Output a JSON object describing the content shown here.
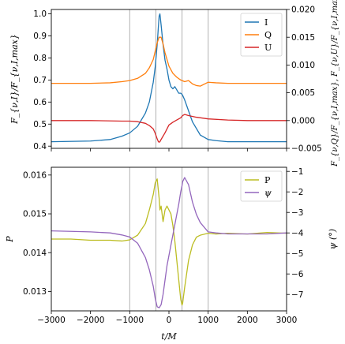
{
  "chart_data": [
    {
      "type": "line",
      "xlim": [
        -3000,
        3000
      ],
      "ylim": [
        0.39,
        1.02
      ],
      "ylim_right": [
        -0.005,
        0.02
      ],
      "ylabel": "F_{ν,I}/F_{ν,I,max}",
      "ylabel_right": "F_{ν,Q}/F_{ν,I,max}, F_{ν,U}/F_{ν,I,max}",
      "yticks": [
        0.4,
        0.5,
        0.6,
        0.7,
        0.8,
        0.9,
        1.0
      ],
      "yticks_right": [
        -0.005,
        0.0,
        0.005,
        0.01,
        0.015,
        0.02
      ],
      "vlines": [
        -1000,
        -333,
        333,
        1000
      ],
      "legend": "top-right",
      "series": [
        {
          "name": "I",
          "axis": "left",
          "color": "#1f77b4",
          "x": [
            -3000,
            -2000,
            -1500,
            -1200,
            -1000,
            -800,
            -600,
            -500,
            -400,
            -350,
            -300,
            -270,
            -250,
            -230,
            -200,
            -150,
            -100,
            -50,
            0,
            50,
            100,
            150,
            200,
            250,
            300,
            333,
            350,
            400,
            500,
            600,
            800,
            1000,
            1200,
            1500,
            2000,
            2500,
            3000
          ],
          "values": [
            0.42,
            0.423,
            0.43,
            0.445,
            0.46,
            0.49,
            0.55,
            0.6,
            0.69,
            0.76,
            0.86,
            0.94,
            0.99,
            1.0,
            0.95,
            0.86,
            0.79,
            0.75,
            0.7,
            0.67,
            0.66,
            0.67,
            0.655,
            0.64,
            0.64,
            0.635,
            0.63,
            0.61,
            0.56,
            0.51,
            0.45,
            0.43,
            0.425,
            0.42,
            0.42,
            0.42,
            0.42
          ]
        },
        {
          "name": "Q",
          "axis": "right",
          "color": "#ff7f0e",
          "x": [
            -3000,
            -2000,
            -1500,
            -1200,
            -1000,
            -800,
            -600,
            -500,
            -400,
            -350,
            -300,
            -250,
            -200,
            -150,
            -100,
            -50,
            0,
            100,
            200,
            300,
            400,
            500,
            600,
            700,
            800,
            1000,
            1200,
            1500,
            2000,
            3000
          ],
          "values": [
            0.0067,
            0.0067,
            0.0068,
            0.007,
            0.0072,
            0.0076,
            0.0085,
            0.0095,
            0.011,
            0.0125,
            0.014,
            0.015,
            0.015,
            0.0138,
            0.0122,
            0.011,
            0.0098,
            0.0085,
            0.0078,
            0.0073,
            0.007,
            0.0072,
            0.0066,
            0.0063,
            0.0062,
            0.0069,
            0.0068,
            0.0067,
            0.0067,
            0.0067
          ]
        },
        {
          "name": "U",
          "axis": "right",
          "color": "#d62728",
          "x": [
            -3000,
            -2000,
            -1200,
            -1000,
            -800,
            -600,
            -500,
            -400,
            -350,
            -300,
            -270,
            -250,
            -230,
            -200,
            -100,
            0,
            100,
            200,
            300,
            350,
            400,
            500,
            700,
            1000,
            1500,
            2000,
            3000
          ],
          "values": [
            0.0,
            0.0,
            -0.0001,
            -0.0001,
            -0.0002,
            -0.0005,
            -0.0009,
            -0.0015,
            -0.0023,
            -0.0033,
            -0.0038,
            -0.0039,
            -0.0038,
            -0.0034,
            -0.0022,
            -0.0008,
            -0.0003,
            0.0001,
            0.0005,
            0.0009,
            0.0011,
            0.0009,
            0.0006,
            0.0003,
            0.0001,
            0.0,
            0.0
          ]
        }
      ]
    },
    {
      "type": "line",
      "xlim": [
        -3000,
        3000
      ],
      "xlabel": "t/M",
      "ylim": [
        0.0125,
        0.0162
      ],
      "ylim_right": [
        -7.8,
        -0.8
      ],
      "ylabel": "P",
      "ylabel_right": "ψ (°)",
      "xticks": [
        -3000,
        -2000,
        -1000,
        0,
        1000,
        2000,
        3000
      ],
      "xtick_labels": [
        "−3000",
        "−2000",
        "−1000",
        "0",
        "1000",
        "2000",
        "3000"
      ],
      "yticks": [
        0.013,
        0.014,
        0.015,
        0.016
      ],
      "yticks_right": [
        -7,
        -6,
        -5,
        -4,
        -3,
        -2,
        -1
      ],
      "ytick_labels_right": [
        "−7",
        "−6",
        "−5",
        "−4",
        "−3",
        "−2",
        "−1"
      ],
      "vlines": [
        -1000,
        -333,
        333,
        1000
      ],
      "legend": "top-right",
      "series": [
        {
          "name": "P",
          "axis": "left",
          "color": "#bcbd22",
          "x": [
            -3000,
            -2500,
            -2000,
            -1500,
            -1200,
            -1000,
            -800,
            -600,
            -500,
            -400,
            -350,
            -300,
            -270,
            -250,
            -230,
            -200,
            -150,
            -100,
            -50,
            0,
            50,
            100,
            150,
            200,
            250,
            300,
            333,
            350,
            400,
            500,
            600,
            700,
            800,
            1000,
            1200,
            1500,
            2000,
            2500,
            3000
          ],
          "values": [
            0.01435,
            0.01435,
            0.01432,
            0.01432,
            0.0143,
            0.01433,
            0.01445,
            0.01475,
            0.0151,
            0.0155,
            0.0158,
            0.0159,
            0.0156,
            0.0154,
            0.0151,
            0.0152,
            0.0148,
            0.0151,
            0.0152,
            0.0151,
            0.015,
            0.0147,
            0.0143,
            0.0138,
            0.0133,
            0.0128,
            0.01265,
            0.0127,
            0.0131,
            0.0138,
            0.0142,
            0.0144,
            0.01445,
            0.0145,
            0.01448,
            0.0145,
            0.01448,
            0.01452,
            0.0145
          ]
        },
        {
          "name": "ψ",
          "axis": "right",
          "color": "#9467bd",
          "x": [
            -3000,
            -2000,
            -1500,
            -1200,
            -1000,
            -800,
            -600,
            -500,
            -400,
            -350,
            -300,
            -250,
            -200,
            -150,
            -100,
            -50,
            0,
            50,
            100,
            150,
            200,
            250,
            300,
            333,
            350,
            400,
            500,
            600,
            700,
            800,
            1000,
            1200,
            1500,
            2000,
            2500,
            3000
          ],
          "values": [
            -3.9,
            -3.95,
            -4.0,
            -4.1,
            -4.2,
            -4.5,
            -5.2,
            -5.8,
            -6.6,
            -7.2,
            -7.6,
            -7.65,
            -7.5,
            -7.0,
            -6.3,
            -5.6,
            -5.1,
            -4.6,
            -4.1,
            -3.6,
            -3.1,
            -2.6,
            -2.0,
            -1.7,
            -1.5,
            -1.3,
            -1.65,
            -2.5,
            -3.1,
            -3.5,
            -3.95,
            -4.0,
            -4.05,
            -4.05,
            -4.05,
            -4.0
          ]
        }
      ]
    }
  ]
}
